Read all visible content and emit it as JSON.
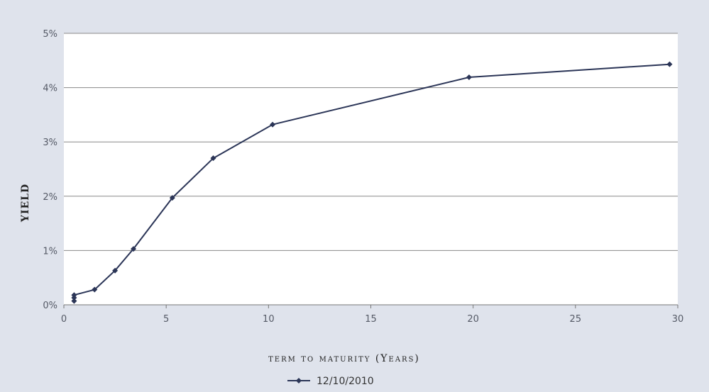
{
  "chart_data": {
    "type": "line",
    "title": "",
    "xlabel": "term to maturity (Years)",
    "ylabel": "YIELD",
    "xlim": [
      0,
      30
    ],
    "ylim": [
      0,
      5
    ],
    "x_ticks": [
      0,
      5,
      10,
      15,
      20,
      25,
      30
    ],
    "y_ticks": [
      0,
      1,
      2,
      3,
      4,
      5
    ],
    "x_tick_labels": [
      "0",
      "5",
      "10",
      "15",
      "20",
      "25",
      "30"
    ],
    "y_tick_labels": [
      "0%",
      "1%",
      "2%",
      "3%",
      "4%",
      "5%"
    ],
    "grid": "horizontal",
    "legend_position": "bottom",
    "colors": {
      "series": "#2b3557",
      "grid": "#888888",
      "plot_bg": "#ffffff",
      "page_bg": "#dfe3ec"
    },
    "series": [
      {
        "name": "12/10/2010",
        "marker": "diamond",
        "points": [
          {
            "x": 0.5,
            "y": 0.07
          },
          {
            "x": 0.5,
            "y": 0.13
          },
          {
            "x": 0.5,
            "y": 0.18
          },
          {
            "x": 1.5,
            "y": 0.28
          },
          {
            "x": 2.5,
            "y": 0.63
          },
          {
            "x": 3.4,
            "y": 1.03
          },
          {
            "x": 5.3,
            "y": 1.97
          },
          {
            "x": 7.3,
            "y": 2.7
          },
          {
            "x": 10.2,
            "y": 3.32
          },
          {
            "x": 19.8,
            "y": 4.19
          },
          {
            "x": 29.6,
            "y": 4.43
          }
        ]
      }
    ]
  }
}
